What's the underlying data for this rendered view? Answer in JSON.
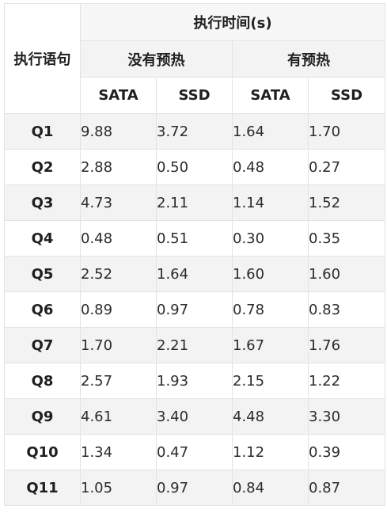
{
  "header": {
    "stmt_label": "执行语句",
    "time_label": "执行时间(s)",
    "group_no_warmup": "没有预热",
    "group_warmup": "有预热",
    "col_sata_1": "SATA",
    "col_ssd_1": "SSD",
    "col_sata_2": "SATA",
    "col_ssd_2": "SSD"
  },
  "rows": [
    {
      "q": "Q1",
      "nw_sata": "9.88",
      "nw_ssd": "3.72",
      "w_sata": "1.64",
      "w_ssd": "1.70"
    },
    {
      "q": "Q2",
      "nw_sata": "2.88",
      "nw_ssd": "0.50",
      "w_sata": "0.48",
      "w_ssd": "0.27"
    },
    {
      "q": "Q3",
      "nw_sata": "4.73",
      "nw_ssd": "2.11",
      "w_sata": "1.14",
      "w_ssd": "1.52"
    },
    {
      "q": "Q4",
      "nw_sata": "0.48",
      "nw_ssd": "0.51",
      "w_sata": "0.30",
      "w_ssd": "0.35"
    },
    {
      "q": "Q5",
      "nw_sata": "2.52",
      "nw_ssd": "1.64",
      "w_sata": "1.60",
      "w_ssd": "1.60"
    },
    {
      "q": "Q6",
      "nw_sata": "0.89",
      "nw_ssd": "0.97",
      "w_sata": "0.78",
      "w_ssd": "0.83"
    },
    {
      "q": "Q7",
      "nw_sata": "1.70",
      "nw_ssd": "2.21",
      "w_sata": "1.67",
      "w_ssd": "1.76"
    },
    {
      "q": "Q8",
      "nw_sata": "2.57",
      "nw_ssd": "1.93",
      "w_sata": "2.15",
      "w_ssd": "1.22"
    },
    {
      "q": "Q9",
      "nw_sata": "4.61",
      "nw_ssd": "3.40",
      "w_sata": "4.48",
      "w_ssd": "3.30"
    },
    {
      "q": "Q10",
      "nw_sata": "1.34",
      "nw_ssd": "0.47",
      "w_sata": "1.12",
      "w_ssd": "0.39"
    },
    {
      "q": "Q11",
      "nw_sata": "1.05",
      "nw_ssd": "0.97",
      "w_sata": "0.84",
      "w_ssd": "0.87"
    }
  ]
}
